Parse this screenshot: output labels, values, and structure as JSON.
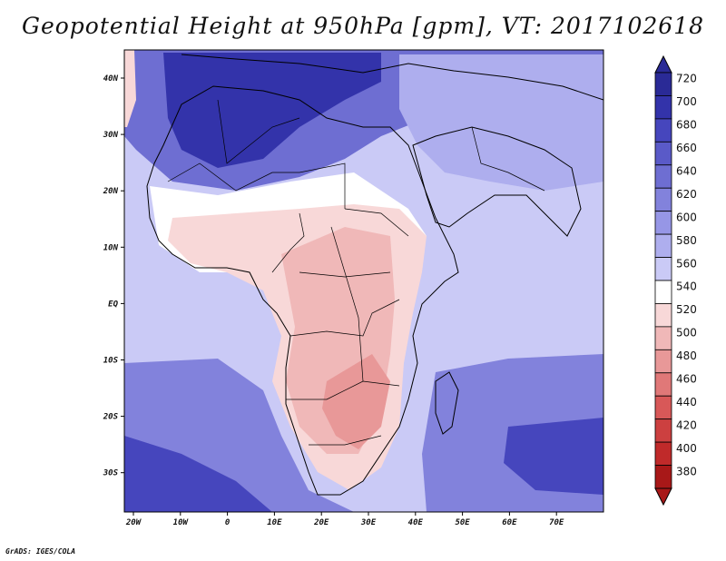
{
  "title": "Geopotential Height at 950hPa [gpm], VT: 2017102618",
  "credit": "GrADS: IGES/COLA",
  "lon_labels": [
    "20W",
    "10W",
    "0",
    "10E",
    "20E",
    "30E",
    "40E",
    "50E",
    "60E",
    "70E"
  ],
  "lat_labels": [
    "40N",
    "30N",
    "20N",
    "10N",
    "EQ",
    "10S",
    "20S",
    "30S"
  ],
  "colorbar": {
    "levels": [
      "720",
      "700",
      "680",
      "660",
      "640",
      "620",
      "600",
      "580",
      "560",
      "540",
      "520",
      "500",
      "480",
      "460",
      "440",
      "420",
      "400",
      "380"
    ],
    "colors": [
      "#2a2a96",
      "#3333aa",
      "#4646bd",
      "#5a5ac8",
      "#6e6ed2",
      "#8282dc",
      "#9696e6",
      "#aeaeee",
      "#cacaf6",
      "#ffffff",
      "#f8d8d8",
      "#f0b8b8",
      "#e89898",
      "#e07878",
      "#d85858",
      "#cc4040",
      "#c02a2a",
      "#a81818"
    ]
  },
  "fill_colors": {
    "ocean_default": "#cacaf6",
    "north_high": "#6e6ed2",
    "north_core": "#3333aa",
    "arabia": "#aeaeee",
    "sahara_low": "#ffffff",
    "africa_low": "#f8d8d8",
    "africa_lower": "#f0b8b8",
    "africa_core": "#e89898",
    "south_high": "#8282dc",
    "south_core": "#4646bd"
  }
}
